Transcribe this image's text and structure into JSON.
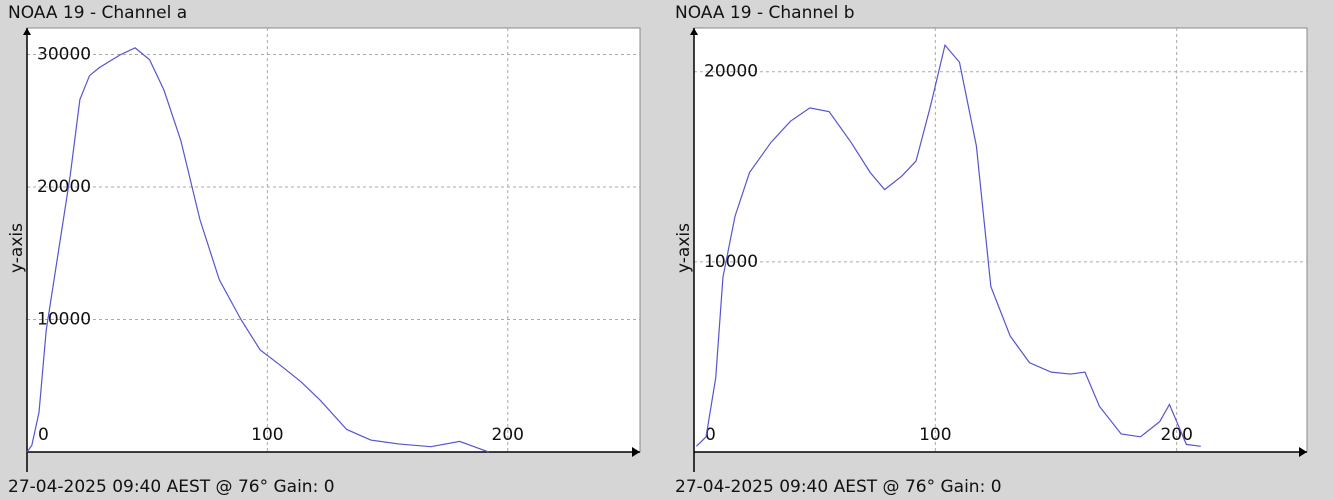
{
  "chart_data": [
    {
      "type": "line",
      "title": "NOAA 19 - Channel a",
      "y_label": "y-axis",
      "caption": "27-04-2025 09:40 AEST @ 76° Gain: 0",
      "x": [
        0,
        2,
        5,
        8,
        18,
        22,
        26,
        30,
        39,
        45,
        51,
        57,
        64,
        72,
        80,
        89,
        97,
        105,
        114,
        122,
        133,
        143,
        155,
        168,
        180,
        186,
        192
      ],
      "series": [
        {
          "color": "#5555d0",
          "values": [
            0,
            500,
            3000,
            9200,
            20900,
            26600,
            28400,
            29000,
            30000,
            30500,
            29600,
            27300,
            23500,
            17500,
            13000,
            10000,
            7700,
            6600,
            5300,
            3900,
            1700,
            900,
            600,
            400,
            800,
            400,
            0
          ]
        }
      ],
      "xlim": [
        0,
        255
      ],
      "ylim": [
        0,
        32000
      ],
      "xticks": [
        0,
        100,
        200
      ],
      "yticks": [
        10000,
        20000,
        30000
      ],
      "grid": true
    },
    {
      "type": "line",
      "title": "NOAA 19 - Channel b",
      "y_label": "y-axis",
      "caption": "27-04-2025 09:40 AEST @ 76° Gain: 0",
      "x": [
        1,
        5,
        9,
        12,
        17,
        23,
        32,
        40,
        48,
        56,
        65,
        73,
        79,
        86,
        92,
        98,
        104,
        110,
        117,
        123,
        131,
        139,
        148,
        156,
        162,
        168,
        177,
        185,
        193,
        197,
        200,
        204,
        210
      ],
      "series": [
        {
          "color": "#5555d0",
          "values": [
            300,
            800,
            3900,
            9200,
            12400,
            14700,
            16300,
            17400,
            18100,
            17900,
            16300,
            14700,
            13800,
            14500,
            15300,
            18200,
            21400,
            20500,
            16100,
            8700,
            6100,
            4700,
            4200,
            4100,
            4200,
            2400,
            950,
            800,
            1600,
            2500,
            1600,
            400,
            300
          ]
        }
      ],
      "xlim": [
        0,
        254
      ],
      "ylim": [
        0,
        22300
      ],
      "xticks": [
        0,
        100,
        200
      ],
      "yticks": [
        10000,
        20000
      ],
      "grid": true
    }
  ]
}
